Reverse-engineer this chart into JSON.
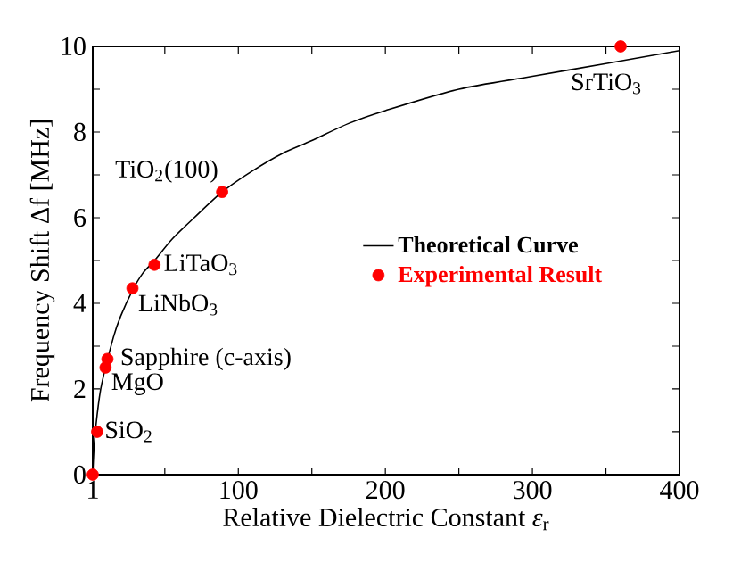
{
  "chart_data": {
    "type": "scatter",
    "xlabel": "Relative Dielectric Constant *ε*$_{r}$",
    "ylabel": "Frequency Shift Δf [MHz]",
    "xlim": [
      1,
      400
    ],
    "ylim": [
      0,
      10
    ],
    "xticks": [
      1,
      {
        "value": 50,
        "label": null
      },
      100,
      {
        "value": 150,
        "label": null
      },
      200,
      {
        "value": 250,
        "label": null
      },
      300,
      {
        "value": 350,
        "label": null
      },
      400
    ],
    "yticks": [
      0,
      {
        "value": 1,
        "label": null
      },
      2,
      {
        "value": 3,
        "label": null
      },
      4,
      {
        "value": 5,
        "label": null
      },
      6,
      {
        "value": 7,
        "label": null
      },
      8,
      {
        "value": 9,
        "label": null
      },
      10
    ],
    "legend": "right",
    "series": [
      {
        "name": "Theoretical Curve",
        "type": "line",
        "color": "#000000",
        "line_style": "solid",
        "marker": "none",
        "x": [
          1,
          2,
          4,
          7,
          15,
          20,
          28,
          35,
          43,
          55,
          70,
          89,
          110,
          130,
          150,
          175,
          200,
          250,
          300,
          350,
          400
        ],
        "values": [
          0,
          0.7,
          1.4,
          2.1,
          3.2,
          3.7,
          4.3,
          4.7,
          5.0,
          5.5,
          6.0,
          6.6,
          7.1,
          7.5,
          7.8,
          8.2,
          8.5,
          9.0,
          9.3,
          9.6,
          9.9
        ]
      },
      {
        "name": "Experimental Result",
        "type": "scatter",
        "color": "#ff0000",
        "marker": "circle",
        "x": [
          1,
          4,
          9.7,
          11,
          28,
          43,
          89,
          360
        ],
        "values": [
          0,
          1.0,
          2.5,
          2.7,
          4.35,
          4.9,
          6.6,
          10
        ]
      }
    ],
    "annotations": [
      {
        "text": "SiO$_{2}$",
        "x": 4,
        "y": 1.0
      },
      {
        "text": "MgO",
        "x": 9.7,
        "y": 2.5
      },
      {
        "text": "Sapphire (c-axis)",
        "x": 11,
        "y": 2.7
      },
      {
        "text": "LiNbO$_{3}$",
        "x": 28,
        "y": 4.35
      },
      {
        "text": "LiTaO$_{3}$",
        "x": 43,
        "y": 4.9
      },
      {
        "text": "TiO$_{2}$(100)",
        "x": 89,
        "y": 6.6
      },
      {
        "text": "SrTiO$_{3}$",
        "x": 360,
        "y": 10
      }
    ]
  }
}
